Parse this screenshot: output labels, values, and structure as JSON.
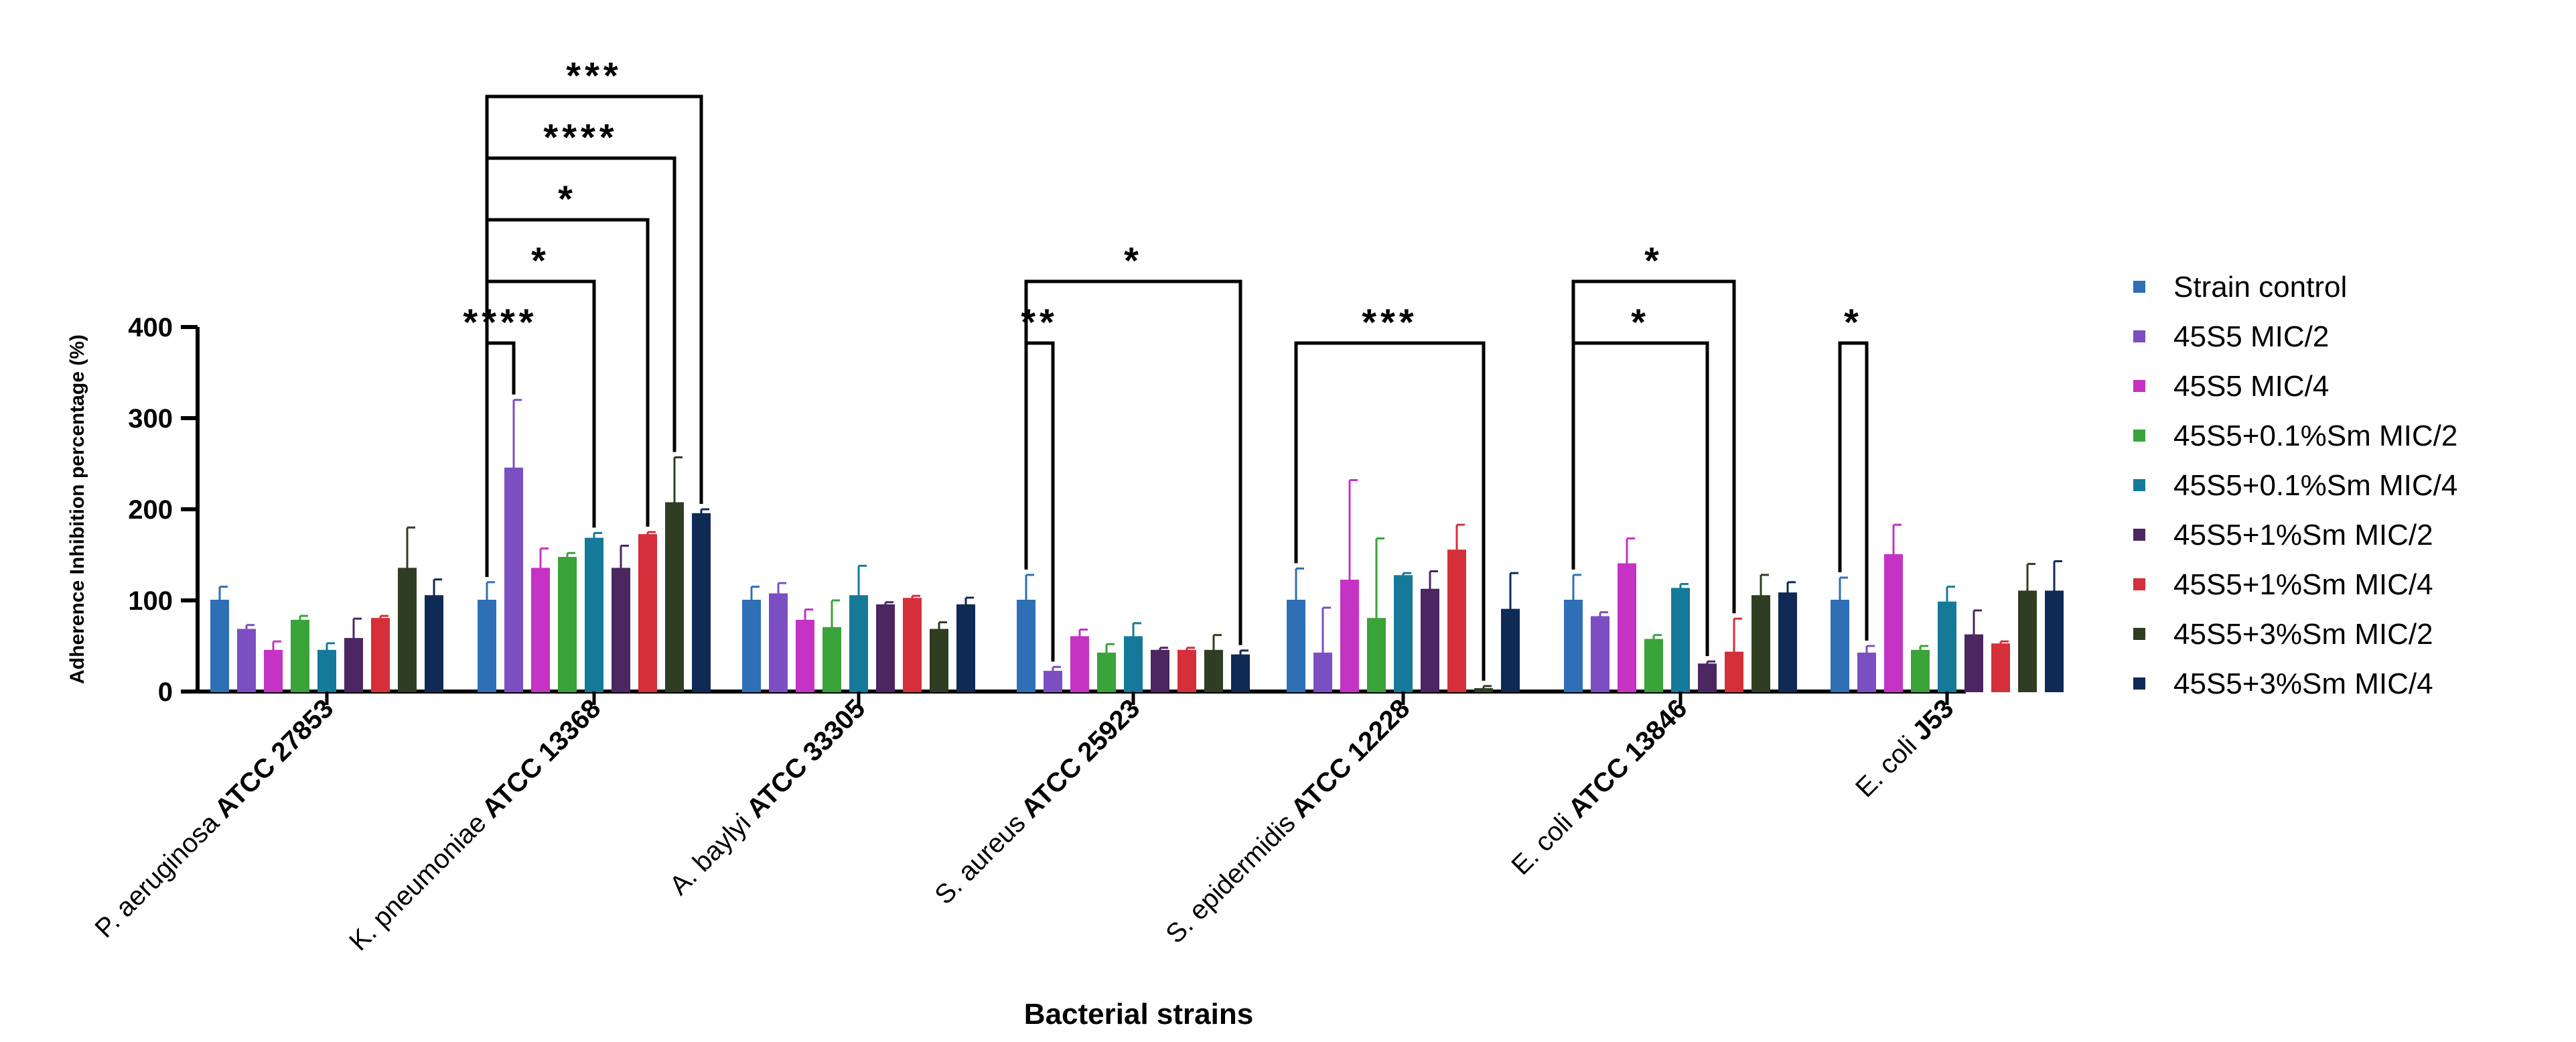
{
  "chart_data": {
    "type": "bar",
    "xlabel": "Bacterial strains",
    "ylabel": "Adherence Inhibition percentage (%)",
    "ylim": [
      0,
      400
    ],
    "yticks": [
      0,
      100,
      200,
      300,
      400
    ],
    "grid": false,
    "legend_position": "right",
    "categories": [
      {
        "prefix": "P. aeruginosa ",
        "strain": "ATCC 27853"
      },
      {
        "prefix": "K. pneumoniae ",
        "strain": "ATCC 13368"
      },
      {
        "prefix": "A. baylyi ",
        "strain": "ATCC 33305"
      },
      {
        "prefix": "S. aureus ",
        "strain": "ATCC 25923"
      },
      {
        "prefix": "S. epidermidis ",
        "strain": "ATCC 12228"
      },
      {
        "prefix": "E. coli ",
        "strain": "ATCC 13846"
      },
      {
        "prefix": "E. coli ",
        "strain": "J53"
      }
    ],
    "series": [
      {
        "name": "Strain control",
        "color": "#2f6fb6",
        "values": [
          100,
          100,
          100,
          100,
          100,
          100,
          100
        ],
        "errors": [
          15,
          20,
          15,
          28,
          35,
          28,
          25
        ]
      },
      {
        "name": "45S5 MIC/2",
        "color": "#7b4fc2",
        "values": [
          68,
          245,
          107,
          22,
          42,
          82,
          42
        ],
        "errors": [
          5,
          75,
          12,
          5,
          50,
          5,
          8
        ]
      },
      {
        "name": "45S5 MIC/4",
        "color": "#c433c4",
        "values": [
          45,
          135,
          78,
          60,
          122,
          140,
          150
        ],
        "errors": [
          10,
          22,
          12,
          8,
          110,
          28,
          33
        ]
      },
      {
        "name": "45S5+0.1%Sm MIC/2",
        "color": "#3aa33a",
        "values": [
          78,
          147,
          70,
          42,
          80,
          57,
          45
        ],
        "errors": [
          5,
          5,
          30,
          10,
          88,
          5,
          5
        ]
      },
      {
        "name": "45S5+0.1%Sm MIC/4",
        "color": "#157a9a",
        "values": [
          45,
          168,
          105,
          60,
          127,
          113,
          98
        ],
        "errors": [
          8,
          6,
          33,
          15,
          3,
          5,
          17
        ]
      },
      {
        "name": "45S5+1%Sm MIC/2",
        "color": "#4b2660",
        "values": [
          58,
          135,
          95,
          45,
          112,
          30,
          62
        ],
        "errors": [
          22,
          25,
          3,
          3,
          20,
          3,
          27
        ]
      },
      {
        "name": "45S5+1%Sm MIC/4",
        "color": "#d42f3a",
        "values": [
          80,
          172,
          102,
          45,
          155,
          43,
          52
        ],
        "errors": [
          3,
          3,
          3,
          3,
          28,
          37,
          3
        ]
      },
      {
        "name": "45S5+3%Sm MIC/2",
        "color": "#2f3d22",
        "values": [
          135,
          207,
          68,
          45,
          3,
          105,
          110
        ],
        "errors": [
          45,
          50,
          8,
          17,
          3,
          23,
          30
        ]
      },
      {
        "name": "45S5+3%Sm MIC/4",
        "color": "#0e2a55",
        "values": [
          105,
          195,
          95,
          40,
          90,
          108,
          110
        ],
        "errors": [
          18,
          5,
          8,
          5,
          40,
          12,
          33
        ]
      }
    ],
    "significance": [
      {
        "category": 1,
        "from_series": 0,
        "to_series": 1,
        "level": 0,
        "label": "****"
      },
      {
        "category": 1,
        "from_series": 0,
        "to_series": 4,
        "level": 1,
        "label": "*"
      },
      {
        "category": 1,
        "from_series": 0,
        "to_series": 6,
        "level": 2,
        "label": "*"
      },
      {
        "category": 1,
        "from_series": 0,
        "to_series": 7,
        "level": 3,
        "label": "****"
      },
      {
        "category": 1,
        "from_series": 0,
        "to_series": 8,
        "level": 4,
        "label": "***"
      },
      {
        "category": 3,
        "from_series": 0,
        "to_series": 1,
        "level": 0,
        "label": "**"
      },
      {
        "category": 3,
        "from_series": 0,
        "to_series": 8,
        "level": 1,
        "label": "*"
      },
      {
        "category": 4,
        "from_series": 0,
        "to_series": 7,
        "level": 0,
        "label": "***"
      },
      {
        "category": 5,
        "from_series": 0,
        "to_series": 5,
        "level": 0,
        "label": "*"
      },
      {
        "category": 5,
        "from_series": 0,
        "to_series": 6,
        "level": 1,
        "label": "*"
      },
      {
        "category": 6,
        "from_series": 0,
        "to_series": 1,
        "level": 0,
        "label": "*"
      }
    ]
  }
}
